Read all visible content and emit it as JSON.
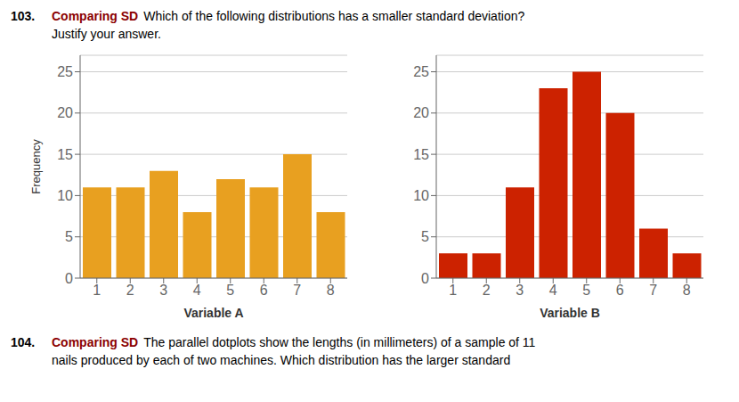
{
  "title": [
    [
      "103.",
      "Comparing SD",
      "Which of the following distributions has a smaller standard deviation?"
    ],
    [
      "Justify your answer."
    ]
  ],
  "subtitle": [
    [
      "104.",
      "Comparing SD",
      "The parallel dotplots show the lengths (in millimeters) of a sample of 11"
    ],
    [
      "nails produced by each of two machines. Which distribution has the larger standard"
    ]
  ],
  "chart_data": [
    {
      "type": "bar",
      "categories": [
        "1",
        "2",
        "3",
        "4",
        "5",
        "6",
        "7",
        "8"
      ],
      "values": [
        11,
        11,
        13,
        8,
        12,
        11,
        15,
        8
      ],
      "color": "#E8A020",
      "xlabel": "Variable A",
      "ylabel": "Frequency",
      "ylim": [
        0,
        27
      ],
      "yticks": [
        0,
        5,
        10,
        15,
        20,
        25
      ],
      "grid": true
    },
    {
      "type": "bar",
      "categories": [
        "1",
        "2",
        "3",
        "4",
        "5",
        "6",
        "7",
        "8"
      ],
      "values": [
        3,
        3,
        11,
        23,
        25,
        20,
        6,
        3
      ],
      "color": "#CC2200",
      "xlabel": "Variable B",
      "ylim": [
        0,
        27
      ],
      "yticks": [
        0,
        5,
        10,
        15,
        20,
        25
      ],
      "grid": true
    }
  ]
}
